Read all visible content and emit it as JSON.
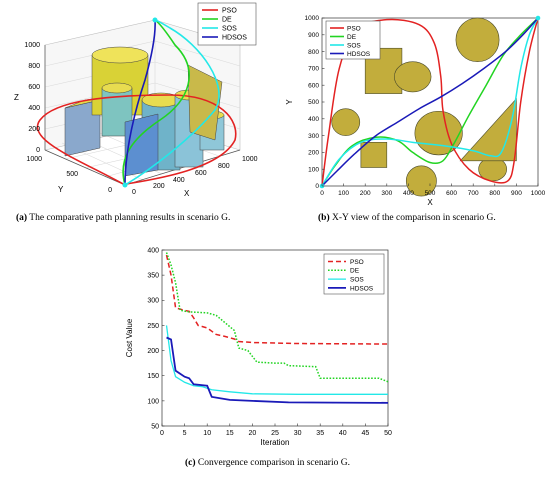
{
  "captions": {
    "a_label": "(a)",
    "a_text": "The comparative path planning results in scenario G.",
    "b_label": "(b)",
    "b_text": "X-Y view of the comparison in scenario G.",
    "c_label": "(c)",
    "c_text": "Convergence comparison in scenario G."
  },
  "colors": {
    "PSO": "#e32222",
    "DE": "#22d422",
    "SOS": "#22e8e8",
    "HDSOS": "#1a1ab8",
    "obstacle": "#c2ad3c",
    "obstacle_stroke": "#4a4a2a"
  },
  "chart_data": [
    {
      "id": "panel-a",
      "type": "line",
      "subtype": "3d",
      "title": "",
      "xlabel": "X",
      "ylabel": "Y",
      "zlabel": "Z",
      "x_ticks": [
        "0",
        "200",
        "400",
        "600",
        "800",
        "1000"
      ],
      "y_ticks": [
        "0",
        "500",
        "1000"
      ],
      "z_ticks": [
        "0",
        "200",
        "400",
        "600",
        "800",
        "1000"
      ],
      "legend": [
        "PSO",
        "DE",
        "SOS",
        "HDSOS"
      ],
      "legend_position": "top-right",
      "grid": true
    },
    {
      "id": "panel-b",
      "type": "line",
      "title": "",
      "xlabel": "X",
      "ylabel": "Y",
      "xlim": [
        0,
        1000
      ],
      "ylim": [
        0,
        1000
      ],
      "x_ticks": [
        0,
        100,
        200,
        300,
        400,
        500,
        600,
        700,
        800,
        900,
        1000
      ],
      "y_ticks": [
        0,
        100,
        200,
        300,
        400,
        500,
        600,
        700,
        800,
        900,
        1000
      ],
      "legend_position": "top-left",
      "grid": false,
      "series": [
        {
          "name": "PSO",
          "points": [
            [
              0,
              0
            ],
            [
              30,
              300
            ],
            [
              80,
              700
            ],
            [
              160,
              930
            ],
            [
              300,
              990
            ],
            [
              450,
              960
            ],
            [
              520,
              850
            ],
            [
              550,
              650
            ],
            [
              560,
              450
            ],
            [
              600,
              250
            ],
            [
              680,
              100
            ],
            [
              780,
              30
            ],
            [
              860,
              30
            ],
            [
              890,
              150
            ],
            [
              920,
              500
            ],
            [
              960,
              800
            ],
            [
              1000,
              1000
            ]
          ]
        },
        {
          "name": "DE",
          "points": [
            [
              0,
              0
            ],
            [
              60,
              120
            ],
            [
              140,
              240
            ],
            [
              250,
              290
            ],
            [
              350,
              270
            ],
            [
              420,
              200
            ],
            [
              500,
              140
            ],
            [
              560,
              150
            ],
            [
              610,
              250
            ],
            [
              680,
              420
            ],
            [
              760,
              600
            ],
            [
              840,
              780
            ],
            [
              920,
              900
            ],
            [
              1000,
              1000
            ]
          ]
        },
        {
          "name": "SOS",
          "points": [
            [
              0,
              0
            ],
            [
              80,
              160
            ],
            [
              180,
              260
            ],
            [
              300,
              280
            ],
            [
              420,
              260
            ],
            [
              560,
              240
            ],
            [
              700,
              210
            ],
            [
              780,
              180
            ],
            [
              830,
              200
            ],
            [
              880,
              400
            ],
            [
              920,
              700
            ],
            [
              960,
              900
            ],
            [
              1000,
              1000
            ]
          ]
        },
        {
          "name": "HDSOS",
          "points": [
            [
              0,
              0
            ],
            [
              70,
              90
            ],
            [
              150,
              190
            ],
            [
              250,
              300
            ],
            [
              350,
              380
            ],
            [
              450,
              460
            ],
            [
              550,
              530
            ],
            [
              650,
              610
            ],
            [
              750,
              700
            ],
            [
              850,
              800
            ],
            [
              930,
              900
            ],
            [
              1000,
              1000
            ]
          ]
        }
      ],
      "obstacles": [
        {
          "shape": "rect",
          "x": [
            200,
            370
          ],
          "y": [
            550,
            820
          ]
        },
        {
          "shape": "rect",
          "x": [
            180,
            300
          ],
          "y": [
            110,
            260
          ]
        },
        {
          "shape": "ellipse",
          "cx": 420,
          "cy": 650,
          "rx": 85,
          "ry": 90
        },
        {
          "shape": "ellipse",
          "cx": 720,
          "cy": 870,
          "rx": 100,
          "ry": 130
        },
        {
          "shape": "ellipse",
          "cx": 540,
          "cy": 315,
          "rx": 110,
          "ry": 130
        },
        {
          "shape": "ellipse",
          "cx": 110,
          "cy": 380,
          "rx": 65,
          "ry": 80
        },
        {
          "shape": "ellipse",
          "cx": 460,
          "cy": 30,
          "rx": 70,
          "ry": 90
        },
        {
          "shape": "ellipse",
          "cx": 790,
          "cy": 100,
          "rx": 65,
          "ry": 70
        },
        {
          "shape": "poly",
          "points": [
            [
              640,
              150
            ],
            [
              900,
              520
            ],
            [
              900,
              150
            ]
          ]
        }
      ]
    },
    {
      "id": "panel-c",
      "type": "line",
      "title": "",
      "xlabel": "Iteration",
      "ylabel": "Cost Value",
      "xlim": [
        0,
        50
      ],
      "ylim": [
        50,
        400
      ],
      "x_ticks": [
        0,
        5,
        10,
        15,
        20,
        25,
        30,
        35,
        40,
        45,
        50
      ],
      "y_ticks": [
        50,
        100,
        150,
        200,
        250,
        300,
        350,
        400
      ],
      "legend_position": "top-right",
      "grid": false,
      "series": [
        {
          "name": "PSO",
          "points": [
            [
              1,
              390
            ],
            [
              2,
              350
            ],
            [
              3,
              285
            ],
            [
              5,
              280
            ],
            [
              6,
              278
            ],
            [
              7,
              265
            ],
            [
              8,
              250
            ],
            [
              10,
              245
            ],
            [
              12,
              232
            ],
            [
              14,
              228
            ],
            [
              16,
              223
            ],
            [
              17,
              218
            ],
            [
              20,
              216
            ],
            [
              30,
              214
            ],
            [
              50,
              213
            ]
          ]
        },
        {
          "name": "DE",
          "points": [
            [
              1,
              395
            ],
            [
              2,
              370
            ],
            [
              3,
              335
            ],
            [
              4,
              280
            ],
            [
              6,
              277
            ],
            [
              10,
              275
            ],
            [
              12,
              270
            ],
            [
              14,
              255
            ],
            [
              16,
              240
            ],
            [
              17,
              205
            ],
            [
              19,
              200
            ],
            [
              21,
              177
            ],
            [
              25,
              175
            ],
            [
              27,
              175
            ],
            [
              28,
              170
            ],
            [
              34,
              168
            ],
            [
              35,
              145
            ],
            [
              45,
              145
            ],
            [
              48,
              145
            ],
            [
              50,
              138
            ]
          ]
        },
        {
          "name": "SOS",
          "points": [
            [
              1,
              250
            ],
            [
              2,
              180
            ],
            [
              3,
              148
            ],
            [
              5,
              137
            ],
            [
              7,
              130
            ],
            [
              9,
              128
            ],
            [
              11,
              122
            ],
            [
              15,
              118
            ],
            [
              20,
              114
            ],
            [
              30,
              113
            ],
            [
              50,
              113
            ]
          ]
        },
        {
          "name": "HDSOS",
          "points": [
            [
              1,
              226
            ],
            [
              2,
              222
            ],
            [
              3,
              160
            ],
            [
              5,
              148
            ],
            [
              6,
              145
            ],
            [
              7,
              133
            ],
            [
              10,
              130
            ],
            [
              11,
              108
            ],
            [
              13,
              105
            ],
            [
              15,
              102
            ],
            [
              20,
              100
            ],
            [
              28,
              97
            ],
            [
              50,
              96
            ]
          ]
        }
      ]
    }
  ]
}
